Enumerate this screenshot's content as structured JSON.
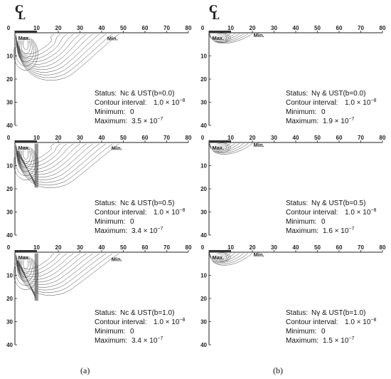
{
  "figure": {
    "centerline_label": "CL",
    "captions": [
      "(a)",
      "(b)"
    ],
    "x_ticks": [
      "0",
      "10",
      "20",
      "30",
      "40",
      "50",
      "60",
      "70",
      "80"
    ],
    "y_ticks": [
      "0",
      "10",
      "20",
      "30",
      "40"
    ],
    "max_label": "Max.",
    "min_label": "Min.",
    "panels": [
      {
        "col": "a",
        "row": 0,
        "status_key": "Status:",
        "status_val": "Nc & UST(b=0.0)",
        "ci_key": "Contour interval:",
        "ci_val": "1.0 × 10",
        "ci_exp": "−8",
        "min_key": "Minimum:",
        "min_val": "0",
        "max_key": "Maximum:",
        "max_val": "3.5 × 10",
        "max_exp": "−7",
        "zone": "wide",
        "beta": 0.0
      },
      {
        "col": "b",
        "row": 0,
        "status_key": "Status:",
        "status_val": "Nγ & UST(b=0.0)",
        "ci_key": "Contour interval:",
        "ci_val": "1.0 × 10",
        "ci_exp": "−8",
        "min_key": "Minimum:",
        "min_val": "0",
        "max_key": "Maximum:",
        "max_val": "1.9 × 10",
        "max_exp": "−7",
        "zone": "shallow",
        "beta": 0.0
      },
      {
        "col": "a",
        "row": 1,
        "status_key": "Status:",
        "status_val": "Nc & UST(b=0.5)",
        "ci_key": "Contour interval:",
        "ci_val": "1.0 × 10",
        "ci_exp": "−8",
        "min_key": "Minimum:",
        "min_val": "0",
        "max_key": "Maximum:",
        "max_val": "3.4 × 10",
        "max_exp": "−7",
        "zone": "wide",
        "beta": 0.5
      },
      {
        "col": "b",
        "row": 1,
        "status_key": "Status:",
        "status_val": "Nγ & UST(b=0.5)",
        "ci_key": "Contour interval:",
        "ci_val": "1.0 × 10",
        "ci_exp": "−8",
        "min_key": "Minimum:",
        "min_val": "0",
        "max_key": "Maximum:",
        "max_val": "1.6 × 10",
        "max_exp": "−7",
        "zone": "shallow",
        "beta": 0.5
      },
      {
        "col": "a",
        "row": 2,
        "status_key": "Status:",
        "status_val": "Nc & UST(b=1.0)",
        "ci_key": "Contour interval:",
        "ci_val": "1.0 × 10",
        "ci_exp": "−8",
        "min_key": "Minimum:",
        "min_val": "0",
        "max_key": "Maximum:",
        "max_val": "3.4 × 10",
        "max_exp": "−7",
        "zone": "wide",
        "beta": 1.0
      },
      {
        "col": "b",
        "row": 2,
        "status_key": "Status:",
        "status_val": "Nγ & UST(b=1.0)",
        "ci_key": "Contour interval:",
        "ci_val": "1.0 × 10",
        "ci_exp": "−8",
        "min_key": "Minimum:",
        "min_val": "0",
        "max_key": "Maximum:",
        "max_val": "1.5 × 10",
        "max_exp": "−7",
        "zone": "shallow",
        "beta": 1.0
      }
    ]
  }
}
